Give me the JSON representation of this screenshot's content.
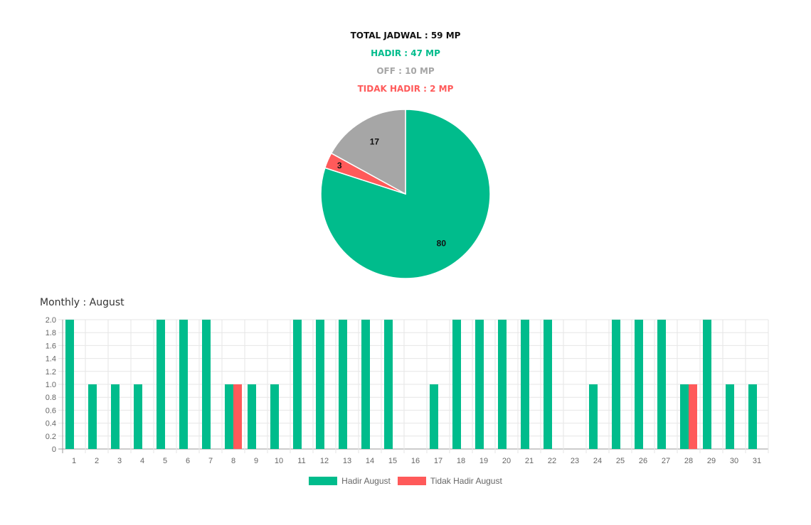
{
  "summary": {
    "total": "TOTAL JADWAL : 59 MP",
    "hadir": "HADIR : 47 MP",
    "off": "OFF : 10 MP",
    "tidak_hadir": "TIDAK HADIR : 2 MP"
  },
  "colors": {
    "hadir": "#00bc8c",
    "off": "#a6a6a6",
    "tidak_hadir": "#ff5a5a",
    "total": "#111111"
  },
  "section_title": "Monthly : August",
  "chart_data": [
    {
      "type": "pie",
      "slices": [
        {
          "label": "80",
          "value": 80,
          "color": "#00bc8c"
        },
        {
          "label": "3",
          "value": 3,
          "color": "#ff5a5a"
        },
        {
          "label": "17",
          "value": 17,
          "color": "#a6a6a6"
        }
      ]
    },
    {
      "type": "bar",
      "categories": [
        "1",
        "2",
        "3",
        "4",
        "5",
        "6",
        "7",
        "8",
        "9",
        "10",
        "11",
        "12",
        "13",
        "14",
        "15",
        "16",
        "17",
        "18",
        "19",
        "20",
        "21",
        "22",
        "23",
        "24",
        "25",
        "26",
        "27",
        "28",
        "29",
        "30",
        "31"
      ],
      "series": [
        {
          "name": "Hadir August",
          "color": "#00bc8c",
          "values": [
            2,
            1,
            1,
            1,
            2,
            2,
            2,
            1,
            1,
            1,
            2,
            2,
            2,
            2,
            2,
            0,
            1,
            2,
            2,
            2,
            2,
            2,
            0,
            1,
            2,
            2,
            2,
            1,
            2,
            1,
            1
          ]
        },
        {
          "name": "Tidak Hadir August",
          "color": "#ff5a5a",
          "values": [
            0,
            0,
            0,
            0,
            0,
            0,
            0,
            1,
            0,
            0,
            0,
            0,
            0,
            0,
            0,
            0,
            0,
            0,
            0,
            0,
            0,
            0,
            0,
            0,
            0,
            0,
            0,
            1,
            0,
            0,
            0
          ]
        }
      ],
      "ylim": [
        0,
        2
      ],
      "yticks": [
        "0",
        "0.2",
        "0.4",
        "0.6",
        "0.8",
        "1.0",
        "1.2",
        "1.4",
        "1.6",
        "1.8",
        "2.0"
      ],
      "grid": true,
      "legend_position": "bottom"
    }
  ]
}
